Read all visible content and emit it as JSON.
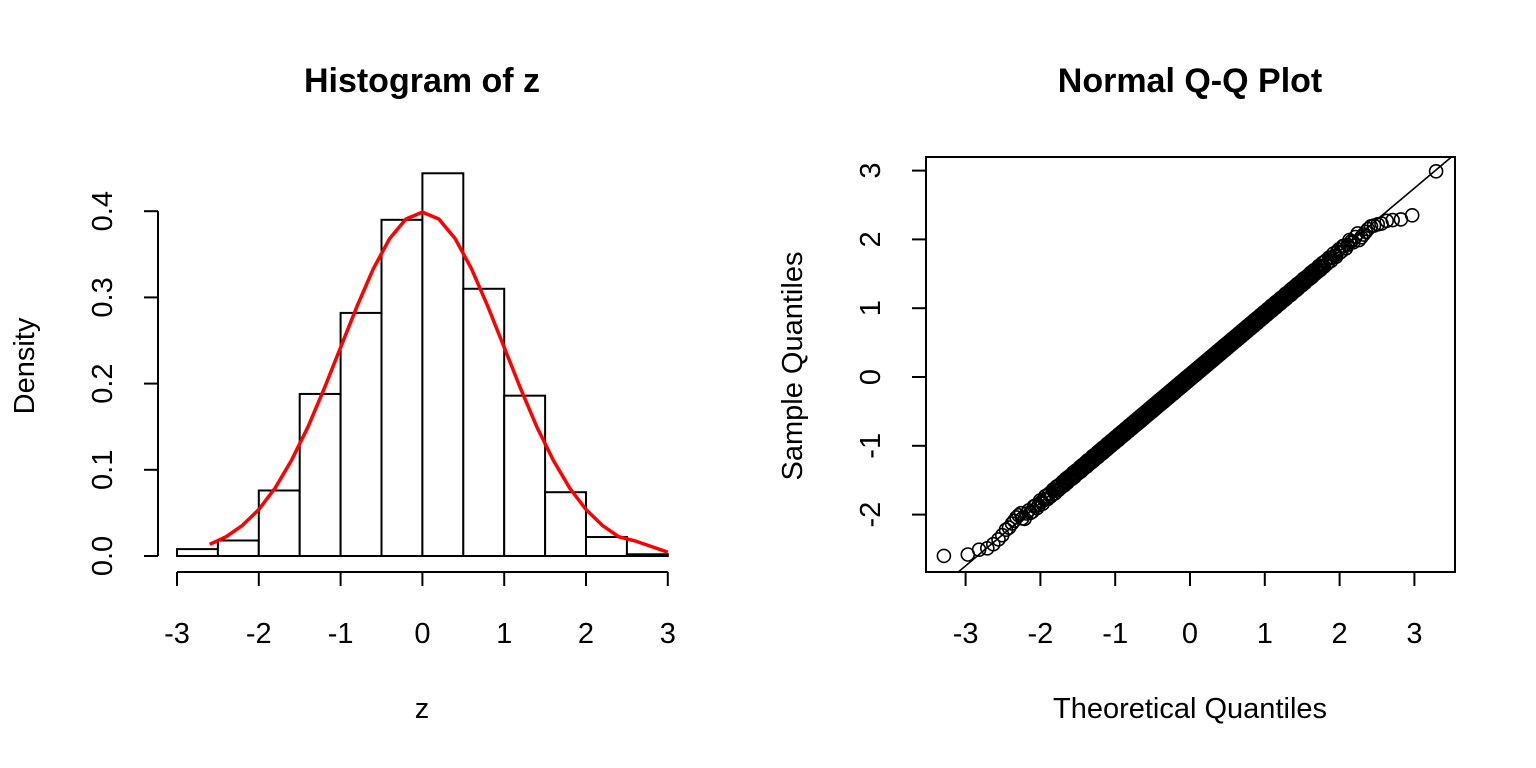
{
  "chart_data": [
    {
      "type": "bar",
      "title": "Histogram of z",
      "xlabel": "z",
      "ylabel": "Density",
      "xlim": [
        -3,
        3
      ],
      "ylim": [
        0,
        0.4
      ],
      "xticks": [
        "-3",
        "-2",
        "-1",
        "0",
        "1",
        "2",
        "3"
      ],
      "yticks": [
        "0.0",
        "0.1",
        "0.2",
        "0.3",
        "0.4"
      ],
      "bins": [
        {
          "x0": -3.0,
          "x1": -2.5,
          "value": 0.008
        },
        {
          "x0": -2.5,
          "x1": -2.0,
          "value": 0.018
        },
        {
          "x0": -2.0,
          "x1": -1.5,
          "value": 0.076
        },
        {
          "x0": -1.5,
          "x1": -1.0,
          "value": 0.188
        },
        {
          "x0": -1.0,
          "x1": -0.5,
          "value": 0.282
        },
        {
          "x0": -0.5,
          "x1": 0.0,
          "value": 0.39
        },
        {
          "x0": 0.0,
          "x1": 0.5,
          "value": 0.444
        },
        {
          "x0": 0.5,
          "x1": 1.0,
          "value": 0.31
        },
        {
          "x0": 1.0,
          "x1": 1.5,
          "value": 0.186
        },
        {
          "x0": 1.5,
          "x1": 2.0,
          "value": 0.074
        },
        {
          "x0": 2.0,
          "x1": 2.5,
          "value": 0.022
        },
        {
          "x0": 2.5,
          "x1": 3.0,
          "value": 0.002
        }
      ],
      "curve": {
        "color": "#ff0000",
        "x": [
          -2.6,
          -2.4,
          -2.2,
          -2.0,
          -1.8,
          -1.6,
          -1.4,
          -1.2,
          -1.0,
          -0.8,
          -0.6,
          -0.4,
          -0.2,
          0.0,
          0.2,
          0.4,
          0.6,
          0.8,
          1.0,
          1.2,
          1.4,
          1.6,
          1.8,
          2.0,
          2.2,
          2.4,
          2.6,
          2.8,
          3.0
        ],
        "y": [
          0.0136,
          0.0224,
          0.0355,
          0.054,
          0.079,
          0.111,
          0.1497,
          0.1942,
          0.242,
          0.2897,
          0.3332,
          0.3683,
          0.391,
          0.3989,
          0.391,
          0.3683,
          0.3332,
          0.2897,
          0.242,
          0.1942,
          0.1497,
          0.111,
          0.079,
          0.054,
          0.0355,
          0.0224,
          0.0175,
          0.011,
          0.0044
        ]
      }
    },
    {
      "type": "scatter",
      "title": "Normal Q-Q Plot",
      "xlabel": "Theoretical Quantiles",
      "ylabel": "Sample Quantiles",
      "xlim": [
        -3.3,
        3.3
      ],
      "ylim": [
        -2.6,
        3.0
      ],
      "xticks": [
        "-3",
        "-2",
        "-1",
        "0",
        "1",
        "2",
        "3"
      ],
      "yticks": [
        "-2",
        "-1",
        "0",
        "1",
        "2",
        "3"
      ],
      "reference_line": {
        "intercept": 0.0,
        "slope": 0.915
      },
      "n_points": 1000,
      "lower_tail": [
        [
          -3.29,
          -2.6
        ],
        [
          -2.97,
          -2.58
        ],
        [
          -2.82,
          -2.51
        ],
        [
          -2.71,
          -2.49
        ],
        [
          -2.63,
          -2.43
        ],
        [
          -2.56,
          -2.36
        ],
        [
          -2.51,
          -2.3
        ],
        [
          -2.46,
          -2.22
        ],
        [
          -2.42,
          -2.19
        ],
        [
          -2.38,
          -2.13
        ],
        [
          -2.35,
          -2.09
        ],
        [
          -2.32,
          -2.04
        ],
        [
          -2.29,
          -2.01
        ],
        [
          -2.26,
          -1.98
        ]
      ],
      "upper_tail": [
        [
          2.26,
          1.99
        ],
        [
          2.29,
          2.03
        ],
        [
          2.32,
          2.07
        ],
        [
          2.35,
          2.11
        ],
        [
          2.38,
          2.15
        ],
        [
          2.42,
          2.19
        ],
        [
          2.46,
          2.2
        ],
        [
          2.51,
          2.22
        ],
        [
          2.56,
          2.23
        ],
        [
          2.63,
          2.27
        ],
        [
          2.71,
          2.28
        ],
        [
          2.82,
          2.29
        ],
        [
          2.97,
          2.35
        ],
        [
          3.29,
          2.99
        ]
      ]
    }
  ]
}
